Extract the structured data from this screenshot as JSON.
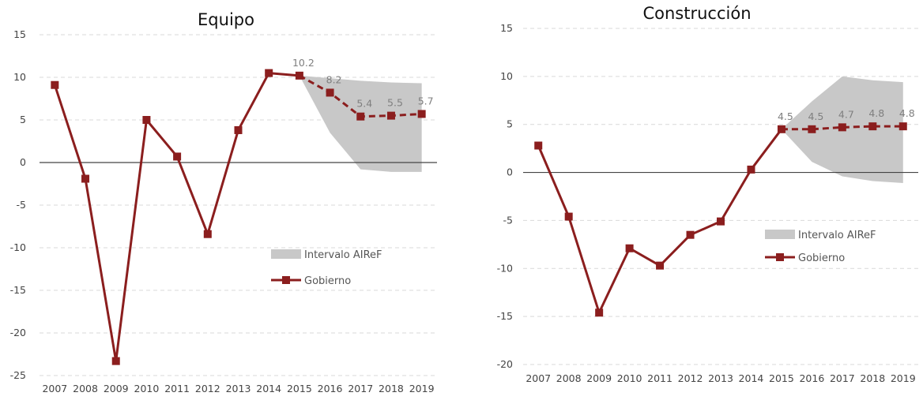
{
  "colors": {
    "series": "#8b1e1e",
    "band": "#c8c8c8"
  },
  "chart_data": [
    {
      "type": "line",
      "title": "Equipo",
      "categories": [
        "2007",
        "2008",
        "2009",
        "2010",
        "2011",
        "2012",
        "2013",
        "2014",
        "2015",
        "2016",
        "2017",
        "2018",
        "2019"
      ],
      "ylim": [
        -25,
        15
      ],
      "yticks": [
        -25,
        -20,
        -15,
        -10,
        -5,
        0,
        5,
        10,
        15
      ],
      "grid": true,
      "legend_position": "center-right",
      "legend": {
        "band": "Intervalo AIReF",
        "line": "Gobierno"
      },
      "series": [
        {
          "name": "Gobierno",
          "values": [
            9.1,
            -1.9,
            -23.3,
            5.0,
            0.7,
            -8.4,
            3.8,
            10.5,
            10.2,
            8.2,
            5.4,
            5.5,
            5.7
          ],
          "forecast_from_index": 8
        }
      ],
      "band": {
        "name": "Intervalo AIReF",
        "start_index": 8,
        "upper": [
          10.2,
          9.9,
          9.6,
          9.4,
          9.3
        ],
        "lower": [
          10.2,
          3.5,
          -0.8,
          -1.1,
          -1.1
        ]
      },
      "data_labels": [
        {
          "index": 8,
          "text": "10.2"
        },
        {
          "index": 9,
          "text": "8.2"
        },
        {
          "index": 10,
          "text": "5.4"
        },
        {
          "index": 11,
          "text": "5.5"
        },
        {
          "index": 12,
          "text": "5.7"
        }
      ]
    },
    {
      "type": "line",
      "title": "Construcción",
      "categories": [
        "2007",
        "2008",
        "2009",
        "2010",
        "2011",
        "2012",
        "2013",
        "2014",
        "2015",
        "2016",
        "2017",
        "2018",
        "2019"
      ],
      "ylim": [
        -20,
        15
      ],
      "yticks": [
        -20,
        -15,
        -10,
        -5,
        0,
        5,
        10,
        15
      ],
      "grid": true,
      "legend_position": "center-right",
      "legend": {
        "band": "Intervalo AIReF",
        "line": "Gobierno"
      },
      "series": [
        {
          "name": "Gobierno",
          "values": [
            2.8,
            -4.6,
            -14.6,
            -7.9,
            -9.7,
            -6.5,
            -5.1,
            0.3,
            4.5,
            4.5,
            4.7,
            4.8,
            4.8
          ],
          "forecast_from_index": 8
        }
      ],
      "band": {
        "name": "Intervalo AIReF",
        "start_index": 8,
        "upper": [
          4.5,
          7.4,
          10.0,
          9.6,
          9.4
        ],
        "lower": [
          4.5,
          1.1,
          -0.4,
          -0.9,
          -1.1
        ]
      },
      "data_labels": [
        {
          "index": 8,
          "text": "4.5"
        },
        {
          "index": 9,
          "text": "4.5"
        },
        {
          "index": 10,
          "text": "4.7"
        },
        {
          "index": 11,
          "text": "4.8"
        },
        {
          "index": 12,
          "text": "4.8"
        }
      ]
    }
  ]
}
